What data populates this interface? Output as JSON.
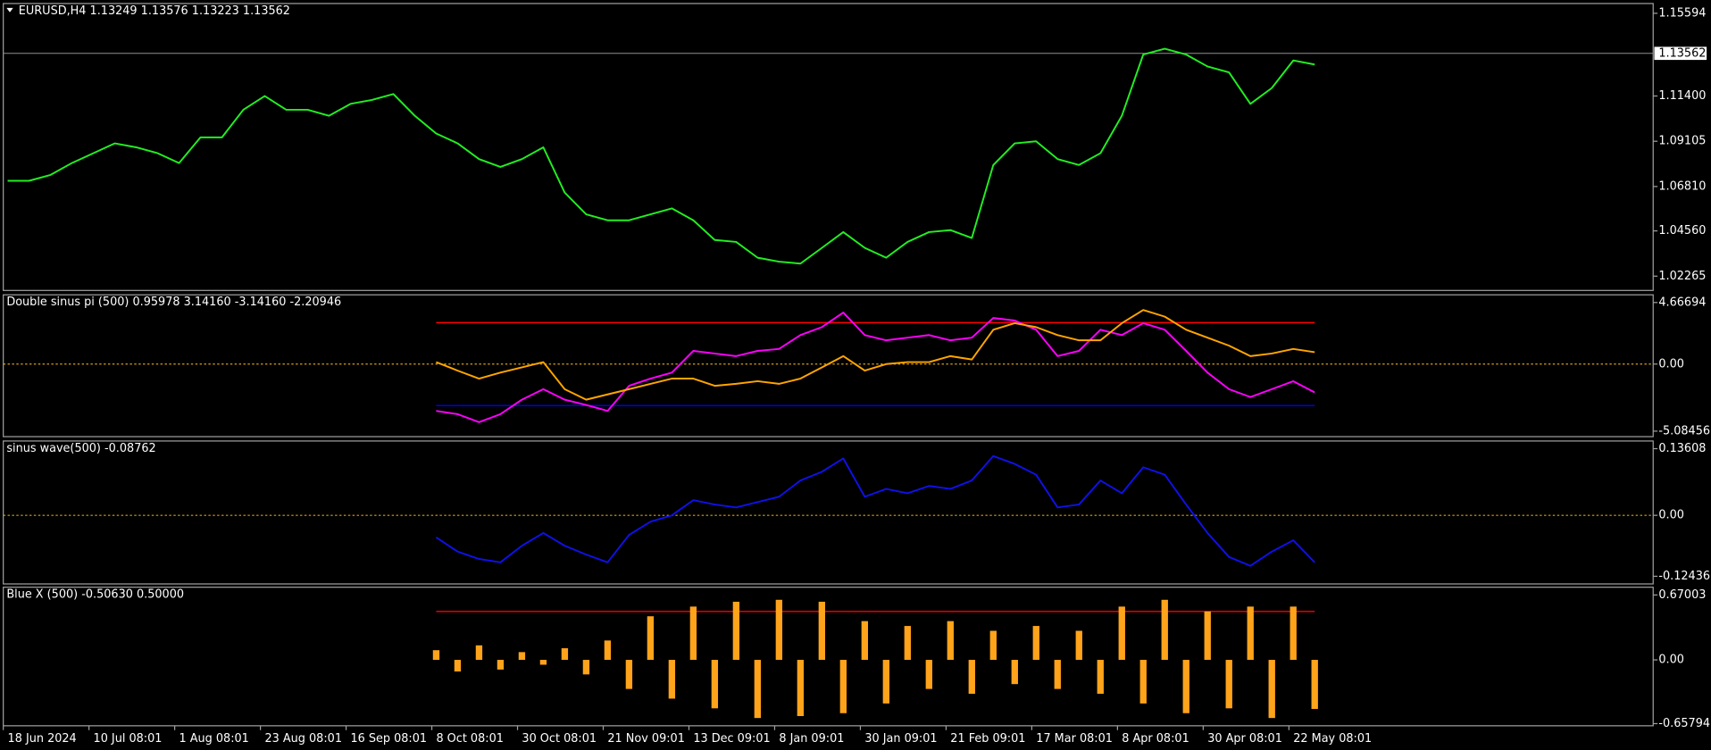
{
  "chart_data": [
    {
      "type": "line",
      "title": "EURUSD,H4  1.13249 1.13576 1.13223 1.13562",
      "ylim": [
        1.0154,
        1.1609
      ],
      "yticks": [
        1.15594,
        {
          "value": 1.114,
          "label": "1.11400"
        },
        1.09105,
        {
          "value": 1.0681,
          "label": "1.06810"
        },
        {
          "value": 1.0456,
          "label": "1.04560"
        },
        1.02265
      ],
      "last_price": 1.13562,
      "series": [
        {
          "color": "#22ee22",
          "values": [
            1.071,
            1.071,
            1.074,
            1.08,
            1.085,
            1.09,
            1.088,
            1.085,
            1.08,
            1.093,
            1.093,
            1.107,
            1.114,
            1.107,
            1.107,
            1.104,
            1.11,
            1.112,
            1.115,
            1.104,
            1.095,
            1.09,
            1.082,
            1.078,
            1.082,
            1.088,
            1.065,
            1.054,
            1.051,
            1.051,
            1.054,
            1.057,
            1.051,
            1.041,
            1.04,
            1.032,
            1.03,
            1.029,
            1.037,
            1.045,
            1.037,
            1.032,
            1.04,
            1.045,
            1.046,
            1.042,
            1.079,
            1.09,
            1.091,
            1.082,
            1.079,
            1.085,
            1.104,
            1.135,
            1.138,
            1.135,
            1.129,
            1.126,
            1.11,
            1.118,
            1.132,
            1.13
          ]
        }
      ]
    },
    {
      "type": "line",
      "title": "Double sinus pi (500) 0.95978 3.14160 -3.14160 -2.20946",
      "ylim": [
        -5.5,
        5.25
      ],
      "yticks": [
        4.66694,
        {
          "value": 0,
          "label": "0.00"
        },
        -5.08456
      ],
      "zero_line_color": "#d4a017",
      "levels": [
        {
          "value": 3.1416,
          "color": "#ff0000"
        },
        {
          "value": -3.1416,
          "color": "#0000ff"
        }
      ],
      "series": [
        {
          "color": "#ff00ff",
          "values": [
            null,
            null,
            null,
            null,
            null,
            null,
            null,
            null,
            null,
            null,
            null,
            null,
            null,
            null,
            null,
            null,
            null,
            null,
            null,
            null,
            -3.55,
            -3.8,
            -4.4,
            -3.8,
            -2.7,
            -1.9,
            -2.7,
            -3.1,
            -3.55,
            -1.65,
            -1.1,
            -0.65,
            1.0,
            0.8,
            0.6,
            1.0,
            1.15,
            2.2,
            2.8,
            3.9,
            2.2,
            1.8,
            2.0,
            2.2,
            1.8,
            2.0,
            3.5,
            3.3,
            2.6,
            0.6,
            1.0,
            2.6,
            2.2,
            3.1,
            2.6,
            1.0,
            -0.65,
            -1.9,
            -2.5,
            -1.9,
            -1.3,
            -2.15
          ]
        },
        {
          "color": "#ffa500",
          "values": [
            null,
            null,
            null,
            null,
            null,
            null,
            null,
            null,
            null,
            null,
            null,
            null,
            null,
            null,
            null,
            null,
            null,
            null,
            null,
            null,
            0.15,
            -0.5,
            -1.1,
            -0.65,
            -0.25,
            0.15,
            -1.9,
            -2.7,
            -2.3,
            -1.9,
            -1.5,
            -1.1,
            -1.1,
            -1.65,
            -1.5,
            -1.3,
            -1.5,
            -1.1,
            -0.25,
            0.6,
            -0.5,
            0,
            0.15,
            0.15,
            0.6,
            0.35,
            2.6,
            3.1,
            2.8,
            2.2,
            1.8,
            1.8,
            3.1,
            4.1,
            3.6,
            2.6,
            2.0,
            1.4,
            0.6,
            0.8,
            1.15,
            0.9
          ]
        }
      ]
    },
    {
      "type": "line",
      "title": "sinus wave(500) -0.08762",
      "ylim": [
        -0.14,
        0.1517
      ],
      "yticks": [
        0.13608,
        {
          "value": 0,
          "label": "0.00"
        },
        -0.12436
      ],
      "zero_line_color": "#d4a017",
      "series": [
        {
          "color": "#1010e8",
          "values": [
            null,
            null,
            null,
            null,
            null,
            null,
            null,
            null,
            null,
            null,
            null,
            null,
            null,
            null,
            null,
            null,
            null,
            null,
            null,
            null,
            -0.045,
            -0.074,
            -0.089,
            -0.096,
            -0.062,
            -0.036,
            -0.062,
            -0.08,
            -0.096,
            -0.04,
            -0.013,
            0,
            0.031,
            0.022,
            0.016,
            0.027,
            0.038,
            0.071,
            0.089,
            0.116,
            0.038,
            0.054,
            0.045,
            0.06,
            0.054,
            0.071,
            0.121,
            0.105,
            0.083,
            0.016,
            0.022,
            0.071,
            0.045,
            0.098,
            0.083,
            0.022,
            -0.036,
            -0.085,
            -0.103,
            -0.074,
            -0.051,
            -0.096
          ]
        }
      ]
    },
    {
      "type": "bar",
      "title": "Blue X (500) -0.50630 0.50000",
      "ylim": [
        -0.68,
        0.75
      ],
      "yticks": [
        0.67003,
        {
          "value": 0,
          "label": "0.00"
        },
        -0.65794
      ],
      "levels": [
        {
          "value": 0.5,
          "color": "#ff0000"
        }
      ],
      "series": [
        {
          "color": "#ffa31a",
          "values": [
            null,
            null,
            null,
            null,
            null,
            null,
            null,
            null,
            null,
            null,
            null,
            null,
            null,
            null,
            null,
            null,
            null,
            null,
            null,
            null,
            0.1,
            -0.12,
            0.15,
            -0.1,
            0.08,
            -0.05,
            0.12,
            -0.15,
            0.2,
            -0.3,
            0.45,
            -0.4,
            0.55,
            -0.5,
            0.6,
            -0.6,
            0.62,
            -0.58,
            0.6,
            -0.55,
            0.4,
            -0.45,
            0.35,
            -0.3,
            0.4,
            -0.35,
            0.3,
            -0.25,
            0.35,
            -0.3,
            0.3,
            -0.35,
            0.55,
            -0.45,
            0.62,
            -0.55,
            0.5,
            -0.5,
            0.55,
            -0.6,
            0.55,
            -0.5063
          ]
        }
      ],
      "categories": [
        "18 Jun 2024",
        null,
        null,
        null,
        "10 Jul 08:01",
        null,
        null,
        null,
        "1 Aug 08:01",
        null,
        null,
        null,
        "23 Aug 08:01",
        null,
        null,
        null,
        "16 Sep 08:01",
        null,
        null,
        null,
        "8 Oct 08:01",
        null,
        null,
        null,
        "30 Oct 08:01",
        null,
        null,
        null,
        "21 Nov 09:01",
        null,
        null,
        null,
        "13 Dec 09:01",
        null,
        null,
        null,
        "8 Jan 09:01",
        null,
        null,
        null,
        "30 Jan 09:01",
        null,
        null,
        null,
        "21 Feb 09:01",
        null,
        null,
        null,
        "17 Mar 08:01",
        null,
        null,
        null,
        "8 Apr 08:01",
        null,
        null,
        null,
        "30 Apr 08:01",
        null,
        null,
        null,
        "22 May 08:01",
        null
      ]
    }
  ]
}
